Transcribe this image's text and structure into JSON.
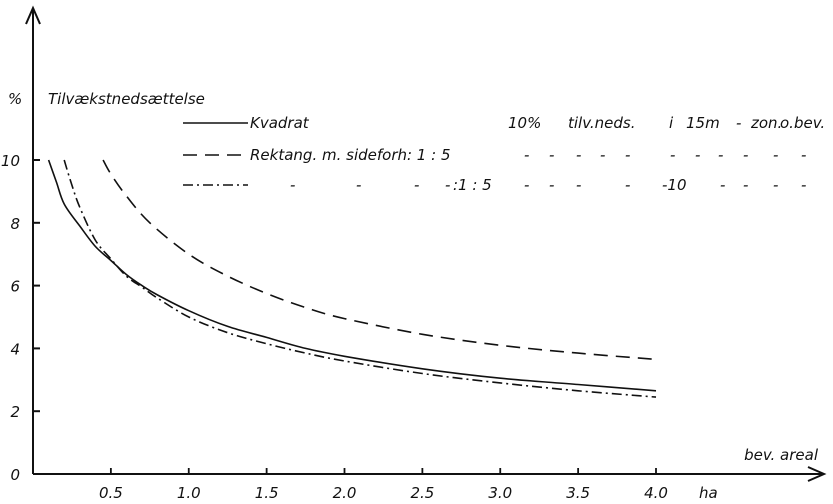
{
  "chart_data": {
    "type": "line",
    "title": "",
    "ylabel": "%",
    "ylabel_caption": "Tilvækstnedsættelse",
    "xlabel": "bev. areal",
    "xunit": "ha",
    "xlim": [
      0,
      4.2
    ],
    "ylim": [
      0,
      11.5
    ],
    "x_ticks": [
      0.5,
      1.0,
      1.5,
      2.0,
      2.5,
      3.0,
      3.5,
      4.0
    ],
    "x_tick_labels": [
      "0.5",
      "1.0",
      "1.5",
      "2.0",
      "2.5",
      "3.0",
      "3.5",
      "4.0",
      "ha"
    ],
    "y_ticks": [
      0,
      2,
      4,
      6,
      8,
      10
    ],
    "y_tick_labels": [
      "0",
      "2",
      "4",
      "6",
      "8",
      "10"
    ],
    "grid": false,
    "legend": {
      "placement": "top-right",
      "entries": [
        {
          "style": "solid",
          "label": "Kvadrat",
          "note": "10% tilv. neds. i 15m - zon. o. bev.",
          "note_parts": [
            "10%",
            "tilv.neds.",
            "i",
            "15m",
            "-",
            "zon.",
            "o.bev."
          ]
        },
        {
          "style": "dashed",
          "label": "Rektang. m. sideforh: 1 : 5",
          "note": "- - - - - - - - - - -",
          "tail": [
            "-",
            "-",
            "-",
            "-",
            "-",
            "-",
            "-",
            "-",
            "-",
            "-",
            "-"
          ]
        },
        {
          "style": "dashdot",
          "label": "- - - - : 1 : 5",
          "note": "- - - - -10 - - - -",
          "ditto_marks": [
            "-",
            "-",
            "-",
            "-"
          ],
          "ratio": ":1 : 5",
          "tail": [
            "-",
            "-",
            "-",
            "-",
            "-10",
            "-",
            "-",
            "-",
            "-"
          ]
        }
      ]
    },
    "series": [
      {
        "style": "solid",
        "x": [
          0.1,
          0.15,
          0.2,
          0.3,
          0.4,
          0.5,
          0.6,
          0.7,
          0.8,
          1.0,
          1.25,
          1.5,
          1.75,
          2.0,
          2.5,
          3.0,
          3.5,
          4.0
        ],
        "y": [
          10.0,
          9.3,
          8.6,
          7.9,
          7.25,
          6.8,
          6.35,
          6.0,
          5.7,
          5.2,
          4.7,
          4.35,
          4.0,
          3.75,
          3.35,
          3.05,
          2.85,
          2.65
        ]
      },
      {
        "style": "dashed",
        "x": [
          0.45,
          0.5,
          0.6,
          0.75,
          1.0,
          1.25,
          1.5,
          1.75,
          2.0,
          2.5,
          3.0,
          3.5,
          4.0
        ],
        "y": [
          10.0,
          9.55,
          8.85,
          8.0,
          7.0,
          6.3,
          5.75,
          5.3,
          4.95,
          4.45,
          4.1,
          3.85,
          3.65
        ]
      },
      {
        "style": "dashdot",
        "x": [
          0.2,
          0.25,
          0.3,
          0.4,
          0.5,
          0.6,
          0.7,
          0.8,
          1.0,
          1.25,
          1.5,
          1.75,
          2.0,
          2.5,
          3.0,
          3.5,
          4.0
        ],
        "y": [
          10.0,
          9.2,
          8.5,
          7.45,
          6.85,
          6.3,
          5.95,
          5.6,
          5.0,
          4.5,
          4.15,
          3.85,
          3.6,
          3.2,
          2.9,
          2.65,
          2.45
        ]
      }
    ]
  }
}
